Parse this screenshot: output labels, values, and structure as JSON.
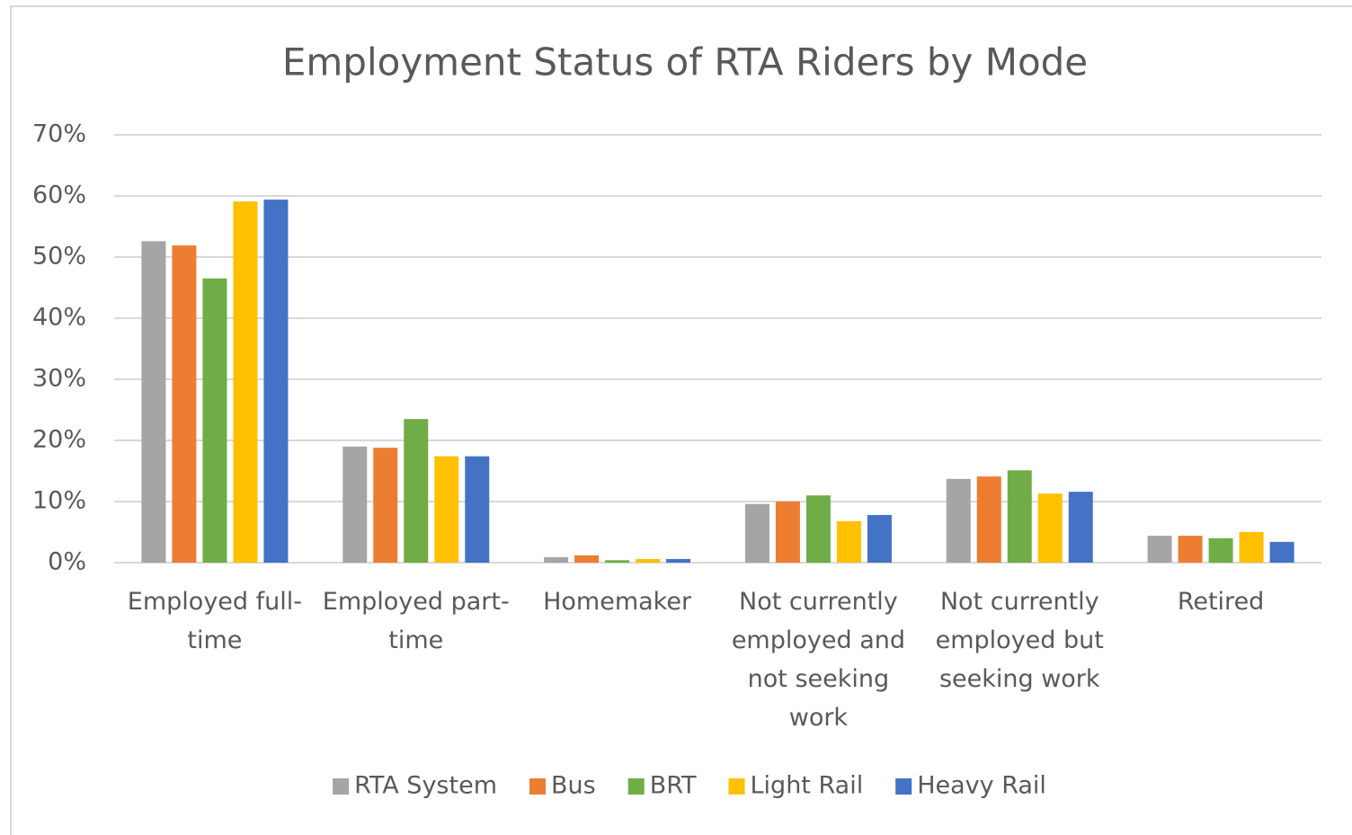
{
  "chart_data": {
    "type": "bar",
    "title": "Employment Status of RTA Riders by Mode",
    "categories": [
      "Employed full-time",
      "Employed part-time",
      "Homemaker",
      "Not currently employed and not seeking work",
      "Not currently employed but seeking work",
      "Retired"
    ],
    "series": [
      {
        "name": "RTA System",
        "color": "#a5a5a5",
        "values": [
          52.6,
          19.0,
          0.9,
          9.6,
          13.7,
          4.4
        ]
      },
      {
        "name": "Bus",
        "color": "#ed7d31",
        "values": [
          51.9,
          18.8,
          1.2,
          10.0,
          14.1,
          4.4
        ]
      },
      {
        "name": "BRT",
        "color": "#70ad47",
        "values": [
          46.5,
          23.5,
          0.4,
          11.0,
          15.1,
          4.0
        ]
      },
      {
        "name": "Light Rail",
        "color": "#ffc000",
        "values": [
          59.1,
          17.4,
          0.6,
          6.8,
          11.3,
          5.0
        ]
      },
      {
        "name": "Heavy Rail",
        "color": "#4472c4",
        "values": [
          59.4,
          17.4,
          0.6,
          7.8,
          11.6,
          3.4
        ]
      }
    ],
    "ylim": [
      0,
      70
    ],
    "yticks": [
      {
        "value": 0,
        "label": "0%"
      },
      {
        "value": 10,
        "label": "10%"
      },
      {
        "value": 20,
        "label": "20%"
      },
      {
        "value": 30,
        "label": "30%"
      },
      {
        "value": 40,
        "label": "40%"
      },
      {
        "value": 50,
        "label": "50%"
      },
      {
        "value": 60,
        "label": "60%"
      },
      {
        "value": 70,
        "label": "70%"
      }
    ],
    "grid": true,
    "legend": "bottom"
  }
}
